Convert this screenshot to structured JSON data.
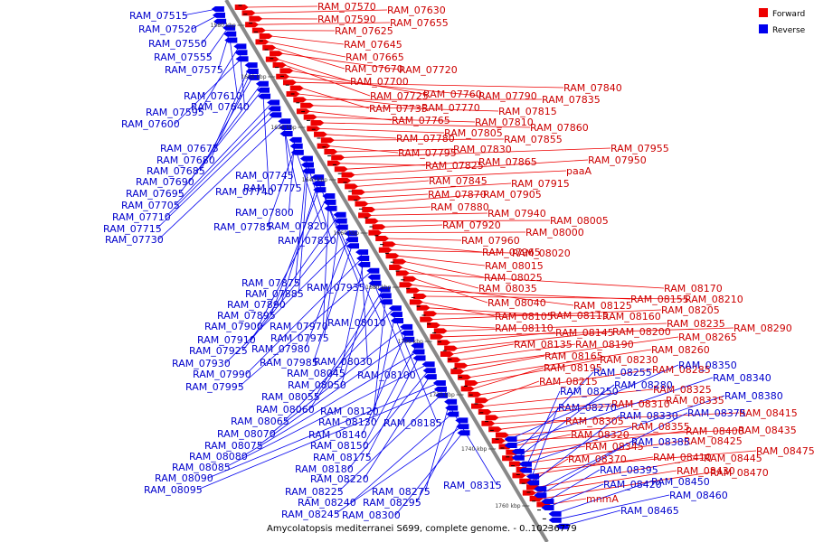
{
  "caption": "Amycolatopsis mediterranei S699, complete genome. - 0..10236779",
  "legend": {
    "forward": {
      "label": "Forward",
      "color": "#ee0000"
    },
    "reverse": {
      "label": "Reverse",
      "color": "#0000ee"
    }
  },
  "backbone_color": "#888888",
  "ticks": [
    "1580 kbp",
    "1600 kbp",
    "1620 kbp",
    "1640 kbp",
    "1660 kbp",
    "1680 kbp",
    "1700 kbp",
    "1720 kbp",
    "1740 kbp",
    "1760 kbp"
  ],
  "forward_labels": [
    "RAM_07570",
    "RAM_07630",
    "RAM_07590",
    "RAM_07655",
    "RAM_07625",
    "RAM_07645",
    "RAM_07665",
    "RAM_07670",
    "RAM_07720",
    "RAM_07700",
    "RAM_07725",
    "RAM_07760",
    "RAM_07790",
    "RAM_07840",
    "RAM_07735",
    "RAM_07770",
    "RAM_07835",
    "RAM_07815",
    "RAM_07765",
    "RAM_07810",
    "RAM_07860",
    "RAM_07805",
    "RAM_07780",
    "RAM_07855",
    "RAM_07795",
    "RAM_07830",
    "RAM_07955",
    "RAM_07825",
    "RAM_07865",
    "RAM_07950",
    "paaA",
    "RAM_07845",
    "RAM_07915",
    "RAM_07870",
    "RAM_07905",
    "RAM_07880",
    "RAM_07940",
    "RAM_08005",
    "RAM_07920",
    "RAM_08000",
    "RAM_07960",
    "RAM_07965",
    "RAM_08020",
    "RAM_08015",
    "RAM_08025",
    "RAM_08035",
    "RAM_08170",
    "RAM_08040",
    "RAM_08125",
    "RAM_08155",
    "RAM_08210",
    "RAM_08105",
    "RAM_08115",
    "RAM_08160",
    "RAM_08205",
    "RAM_08110",
    "RAM_08235",
    "RAM_08290",
    "RAM_08145",
    "RAM_08200",
    "RAM_08135",
    "RAM_08190",
    "RAM_08265",
    "RAM_08165",
    "RAM_08260",
    "RAM_08230",
    "RAM_08195",
    "RAM_08285",
    "RAM_08215",
    "RAM_08325",
    "RAM_08310",
    "RAM_08335",
    "RAM_08415",
    "RAM_08305",
    "RAM_08355",
    "RAM_08435",
    "RAM_08320",
    "RAM_08400",
    "RAM_08345",
    "RAM_08425",
    "RAM_08475",
    "RAM_08410",
    "RAM_08370",
    "RAM_08445",
    "RAM_08430",
    "RAM_08470",
    "mnmA"
  ],
  "reverse_labels": [
    "RAM_07515",
    "RAM_07520",
    "RAM_07550",
    "RAM_07555",
    "RAM_07575",
    "RAM_07610",
    "RAM_07595",
    "RAM_07640",
    "RAM_07600",
    "RAM_07675",
    "RAM_07680",
    "RAM_07685",
    "RAM_07690",
    "RAM_07695",
    "RAM_07740",
    "RAM_07705",
    "RAM_07710",
    "RAM_07715",
    "RAM_07730",
    "RAM_07745",
    "RAM_07775",
    "RAM_07800",
    "RAM_07785",
    "RAM_07820",
    "RAM_07850",
    "RAM_07875",
    "RAM_07885",
    "RAM_07935",
    "RAM_07890",
    "RAM_07895",
    "RAM_07900",
    "RAM_07970",
    "RAM_08010",
    "RAM_07910",
    "RAM_07975",
    "RAM_07925",
    "RAM_07980",
    "RAM_07930",
    "RAM_07985",
    "RAM_08030",
    "RAM_07990",
    "RAM_08045",
    "RAM_07995",
    "RAM_08050",
    "RAM_08100",
    "RAM_08055",
    "RAM_08060",
    "RAM_08120",
    "RAM_08065",
    "RAM_08130",
    "RAM_08185",
    "RAM_08070",
    "RAM_08140",
    "RAM_08075",
    "RAM_08150",
    "RAM_08080",
    "RAM_08175",
    "RAM_08085",
    "RAM_08180",
    "RAM_08220",
    "RAM_08090",
    "RAM_08095",
    "RAM_08225",
    "RAM_08275",
    "RAM_08315",
    "RAM_08240",
    "RAM_08295",
    "RAM_08245",
    "RAM_08300",
    "RAM_08350",
    "RAM_08340",
    "RAM_08255",
    "RAM_08280",
    "RAM_08380",
    "RAM_08250",
    "RAM_08270",
    "RAM_08330",
    "RAM_08375",
    "RAM_08385",
    "RAM_08395",
    "RAM_08420",
    "RAM_08450",
    "RAM_08460",
    "RAM_08465"
  ]
}
